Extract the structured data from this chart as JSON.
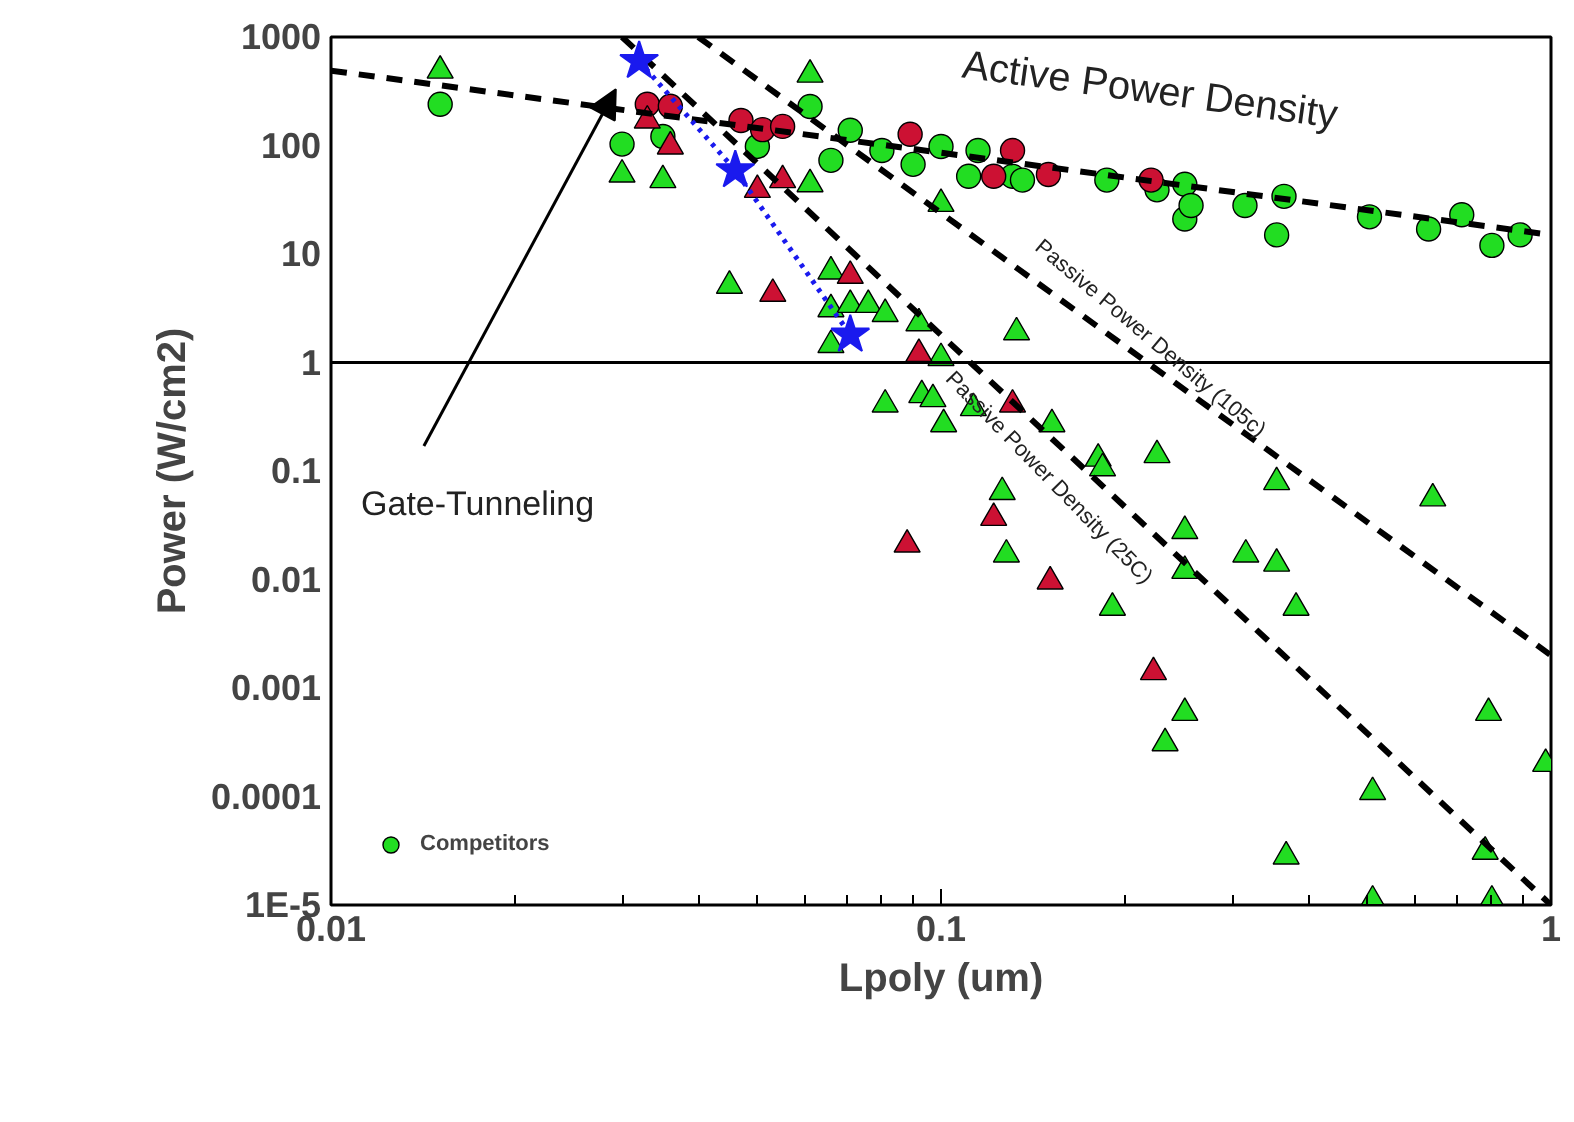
{
  "chart_data": {
    "type": "scatter",
    "xlabel": "Lpoly (um)",
    "ylabel": "Power (W/cm2)",
    "log": "xy",
    "xlim": [
      0.01,
      1
    ],
    "ylim": [
      1e-05,
      1000
    ],
    "xticks": [
      0.01,
      0.1,
      1
    ],
    "yticks": [
      1000,
      100,
      10,
      1,
      0.1,
      0.01,
      0.001,
      0.0001,
      {
        "value": 1e-05,
        "label": "1E-5"
      }
    ],
    "grid": false,
    "legend": "bottom left",
    "ref_lines": [
      {
        "axis": "y",
        "value": 1,
        "color": "#000000",
        "line_style": "solid"
      }
    ],
    "annotations": [
      "Active Power Density",
      "Passive Power Density (105c)",
      "Passive Power Density (25C)",
      "Gate-Tunneling"
    ],
    "series": [
      {
        "name": "Competitors",
        "marker": "circle",
        "color": "#22dd22",
        "x": [
          0.0151,
          0.03,
          0.035,
          0.05,
          0.061,
          0.066,
          0.071,
          0.08,
          0.09,
          0.1,
          0.111,
          0.115,
          0.131,
          0.136,
          0.187,
          0.226,
          0.251,
          0.251,
          0.257,
          0.315,
          0.355,
          0.365,
          0.504,
          0.63,
          0.714,
          0.8,
          0.89
        ],
        "values": [
          240,
          103,
          121,
          98,
          229,
          73,
          138,
          90,
          67,
          98,
          52,
          90,
          52,
          48,
          48,
          39,
          44,
          21,
          28,
          28,
          15,
          34,
          22,
          17,
          23,
          12,
          15
        ]
      },
      {
        "marker": "triangle",
        "color": "#22dd22",
        "x": [
          0.0151,
          0.03,
          0.035,
          0.045,
          0.061,
          0.061,
          0.066,
          0.066,
          0.066,
          0.071,
          0.076,
          0.081,
          0.081,
          0.092,
          0.093,
          0.097,
          0.1,
          0.1,
          0.101,
          0.113,
          0.126,
          0.128,
          0.133,
          0.152,
          0.181,
          0.184,
          0.191,
          0.226,
          0.233,
          0.251,
          0.251,
          0.251,
          0.316,
          0.355,
          0.355,
          0.368,
          0.382,
          0.51,
          0.51,
          0.64,
          0.78,
          0.79,
          0.8,
          0.98
        ],
        "values": [
          490,
          54,
          48,
          5.1,
          450,
          44,
          6.9,
          3.1,
          1.45,
          3.4,
          3.4,
          2.8,
          0.41,
          2.3,
          0.5,
          0.46,
          29,
          1.1,
          0.27,
          0.38,
          0.064,
          0.017,
          1.9,
          0.27,
          0.13,
          0.106,
          0.0055,
          0.14,
          0.00031,
          0.00059,
          0.028,
          0.012,
          0.017,
          0.079,
          0.014,
          2.8e-05,
          0.0055,
          0.00011,
          1.1e-05,
          0.056,
          3.1e-05,
          0.00059,
          1.1e-05,
          0.0002
        ]
      },
      {
        "marker": "circle",
        "color": "#cc1133",
        "x": [
          0.033,
          0.036,
          0.047,
          0.051,
          0.055,
          0.089,
          0.122,
          0.131,
          0.15,
          0.221
        ],
        "values": [
          240,
          230,
          170,
          140,
          150,
          127,
          52,
          90,
          54,
          48
        ]
      },
      {
        "marker": "triangle",
        "color": "#cc1133",
        "x": [
          0.033,
          0.036,
          0.05,
          0.053,
          0.055,
          0.071,
          0.088,
          0.092,
          0.122,
          0.131,
          0.151,
          0.223
        ],
        "values": [
          170,
          98,
          39,
          4.3,
          48,
          6.3,
          0.021,
          1.2,
          0.037,
          0.41,
          0.0096,
          0.0014
        ]
      },
      {
        "type": "line",
        "marker": "none",
        "line_style": "dashed",
        "color": "#000000",
        "x": [
          0.01,
          1
        ],
        "values": [
          490,
          15
        ]
      },
      {
        "type": "line",
        "marker": "none",
        "line_style": "dashed",
        "color": "#000000",
        "x": [
          0.04,
          1
        ],
        "values": [
          1000,
          0.002
        ]
      },
      {
        "type": "line",
        "marker": "none",
        "line_style": "dashed",
        "color": "#000000",
        "x": [
          0.03,
          1
        ],
        "values": [
          1000,
          1e-05
        ]
      },
      {
        "type": "line",
        "marker": "star",
        "line_style": "dotted",
        "color": "#1a1aee",
        "x": [
          0.032,
          0.046,
          0.071
        ],
        "values": [
          600,
          59,
          1.8
        ]
      }
    ]
  }
}
